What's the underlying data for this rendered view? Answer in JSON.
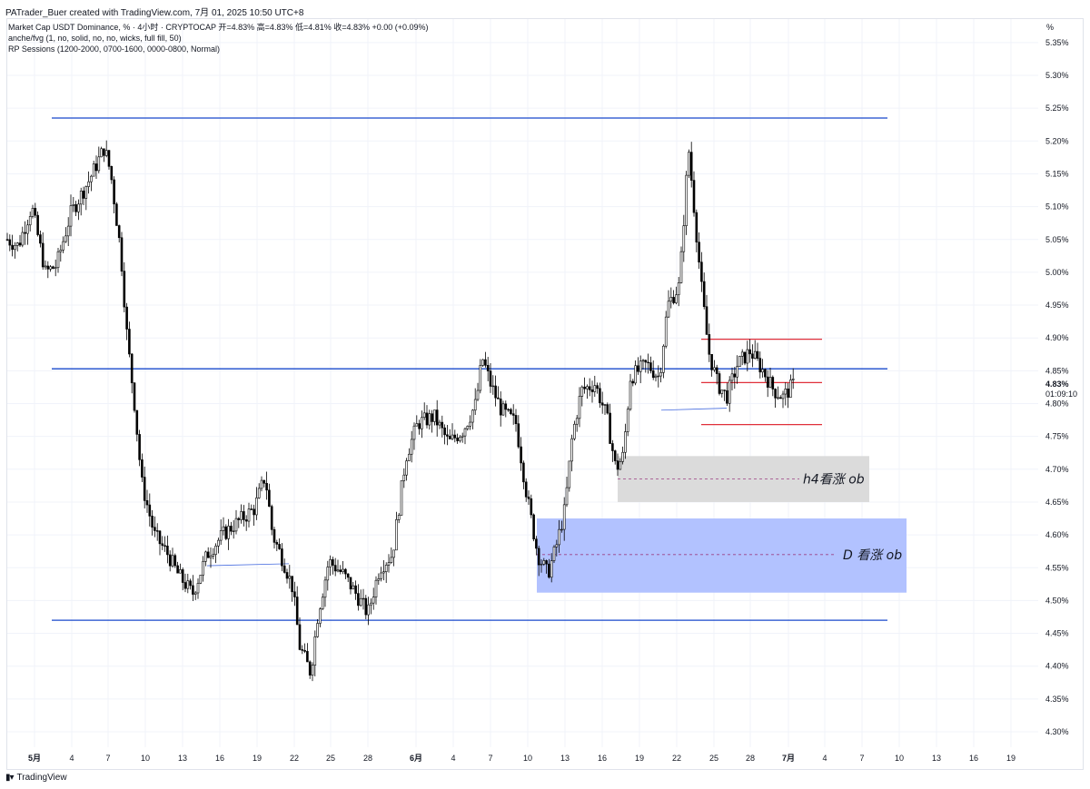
{
  "header": {
    "creator": "PATrader_Buer created with TradingView.com, 7月 01, 2025 10:50 UTC+8",
    "symbol_line": "Market Cap USDT Dominance, % · 4小时 · CRYPTOCAP  开=4.83%  高=4.83%  低=4.81%  收=4.83%  +0.00 (+0.09%)",
    "indicator_1": "anche/fvg (1, no, solid, no, no, wicks, full fill, 50)",
    "indicator_2": "RP Sessions (1200-2000, 0700-1600, 0000-0800, Normal)",
    "unit_label": "%"
  },
  "footer": {
    "brand": "TradingView",
    "logo_icon": "tradingview-logo-icon"
  },
  "chart_data": {
    "type": "candlestick",
    "ylim": [
      4.27,
      5.38
    ],
    "y_ticks": [
      "5.35%",
      "5.30%",
      "5.25%",
      "5.20%",
      "5.15%",
      "5.10%",
      "5.05%",
      "5.00%",
      "4.95%",
      "4.90%",
      "4.85%",
      "4.80%",
      "4.75%",
      "4.70%",
      "4.65%",
      "4.60%",
      "4.55%",
      "4.50%",
      "4.45%",
      "4.40%",
      "4.35%",
      "4.30%"
    ],
    "x_ticks": [
      "5月",
      "4",
      "7",
      "10",
      "13",
      "16",
      "19",
      "22",
      "25",
      "28",
      "6月",
      "4",
      "7",
      "10",
      "13",
      "16",
      "19",
      "22",
      "25",
      "28",
      "7月",
      "4",
      "7",
      "10",
      "13",
      "16",
      "19"
    ],
    "current_price": {
      "label": "4.83%",
      "countdown": "01:09:10",
      "value": 4.83
    },
    "annotations": [
      {
        "label": "h4看涨 ob",
        "top": 4.72,
        "bottom": 4.65,
        "mid": 4.685,
        "color": "#d9d9d9"
      },
      {
        "label": "D 看涨 ob",
        "top": 4.625,
        "bottom": 4.512,
        "mid": 4.57,
        "color": "#aebfff"
      }
    ],
    "support_resistance": [
      5.235,
      4.853,
      4.47
    ],
    "range_lines": [
      4.898,
      4.832,
      4.768
    ],
    "colors": {
      "line": "#1848cc",
      "range": "#e0303a",
      "candle": "#000000",
      "up_fill": "#ffffff",
      "axis_text": "#131722",
      "grid": "#f0f3fa",
      "mid_dash": "#9b3f83"
    }
  }
}
